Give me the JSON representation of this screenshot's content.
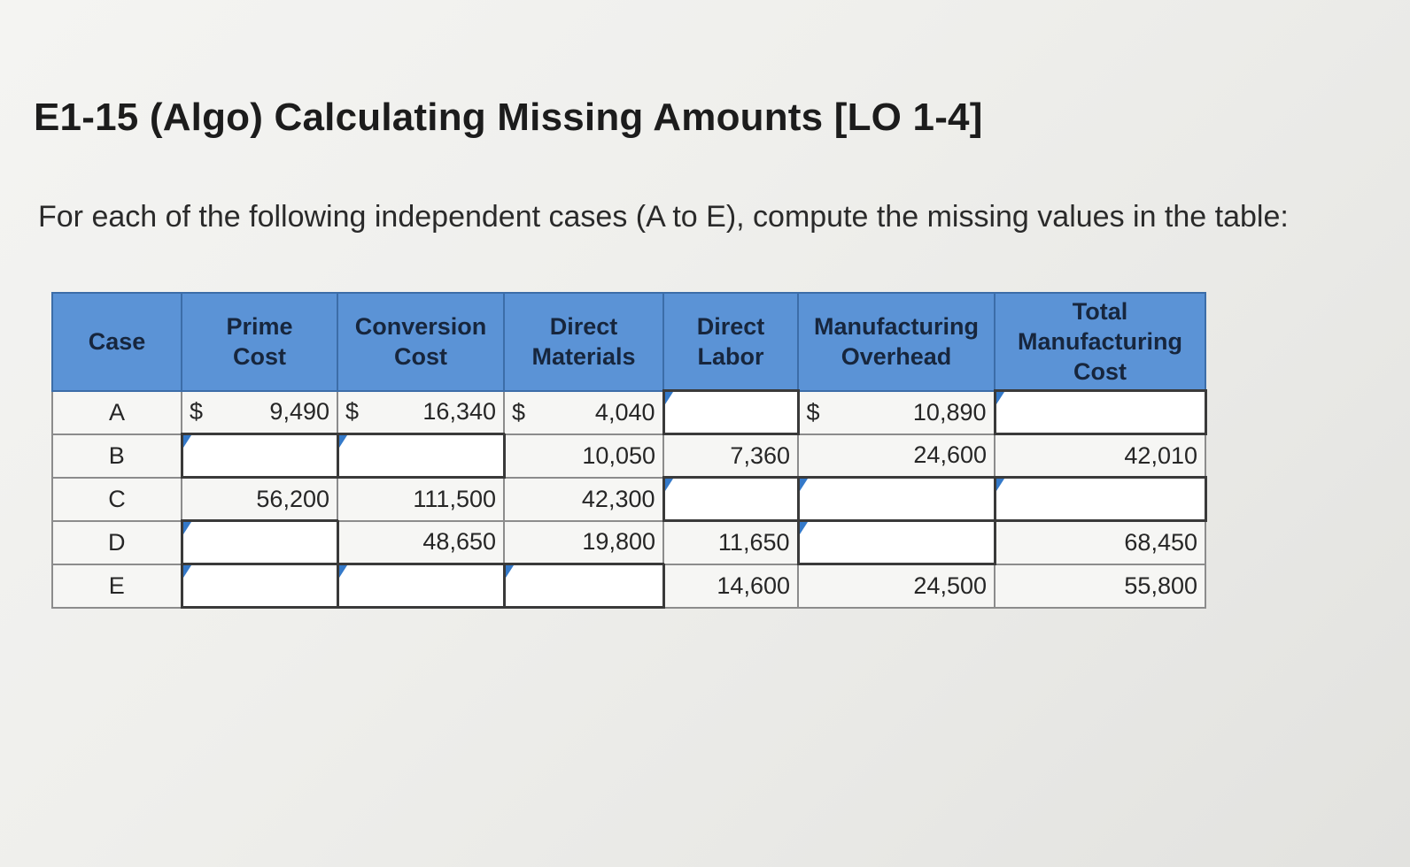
{
  "title": "E1-15 (Algo) Calculating Missing Amounts [LO 1-4]",
  "instructions": "For each of the following independent cases (A to E), compute the missing values in the table:",
  "table": {
    "headers": [
      "Case",
      "Prime\nCost",
      "Conversion\nCost",
      "Direct\nMaterials",
      "Direct\nLabor",
      "Manufacturing\nOverhead",
      "Total\nManufacturing\nCost"
    ],
    "rows": [
      {
        "case": "A",
        "prime_cost": "9,490",
        "conversion_cost": "16,340",
        "direct_materials": "4,040",
        "direct_labor": "",
        "manufacturing_overhead": "10,890",
        "total_manufacturing_cost": ""
      },
      {
        "case": "B",
        "prime_cost": "",
        "conversion_cost": "",
        "direct_materials": "10,050",
        "direct_labor": "7,360",
        "manufacturing_overhead": "24,600",
        "total_manufacturing_cost": "42,010"
      },
      {
        "case": "C",
        "prime_cost": "56,200",
        "conversion_cost": "111,500",
        "direct_materials": "42,300",
        "direct_labor": "",
        "manufacturing_overhead": "",
        "total_manufacturing_cost": ""
      },
      {
        "case": "D",
        "prime_cost": "",
        "conversion_cost": "48,650",
        "direct_materials": "19,800",
        "direct_labor": "11,650",
        "manufacturing_overhead": "",
        "total_manufacturing_cost": "68,450"
      },
      {
        "case": "E",
        "prime_cost": "",
        "conversion_cost": "",
        "direct_materials": "",
        "direct_labor": "14,600",
        "manufacturing_overhead": "24,500",
        "total_manufacturing_cost": "55,800"
      }
    ],
    "currency_symbol": "$"
  },
  "colors": {
    "header_background": "#5b93d6",
    "input_marker": "#3479c9"
  }
}
